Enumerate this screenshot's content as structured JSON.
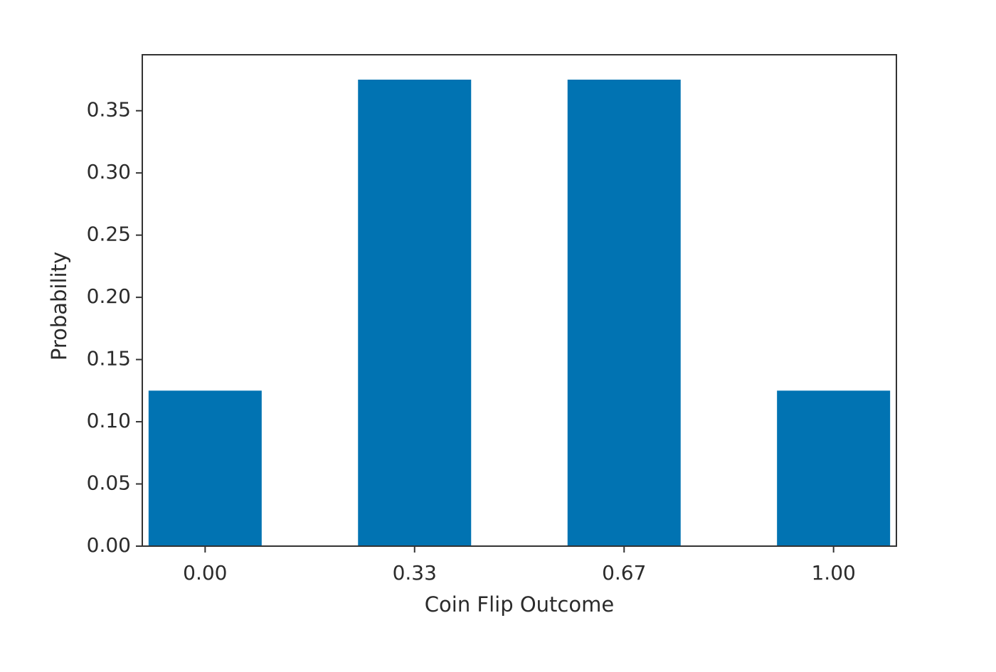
{
  "chart_data": {
    "type": "bar",
    "title": "",
    "xlabel": "Coin Flip Outcome",
    "ylabel": "Probability",
    "categories": [
      "0.00",
      "0.33",
      "0.67",
      "1.00"
    ],
    "x": [
      0.0,
      0.3333,
      0.6667,
      1.0
    ],
    "values": [
      0.125,
      0.375,
      0.375,
      0.125
    ],
    "xlim": [
      -0.1,
      1.1
    ],
    "ylim": [
      0,
      0.395
    ],
    "yticks": [
      0.0,
      0.05,
      0.1,
      0.15,
      0.2,
      0.25,
      0.3,
      0.35
    ],
    "ytick_labels": [
      "0.00",
      "0.05",
      "0.10",
      "0.15",
      "0.20",
      "0.25",
      "0.30",
      "0.35"
    ],
    "bar_width": 0.18,
    "grid": false,
    "legend": "none",
    "colors": {
      "bar": "#0173b2",
      "axis": "#333333",
      "text": "#2b2b2b",
      "background": "#ffffff"
    }
  }
}
